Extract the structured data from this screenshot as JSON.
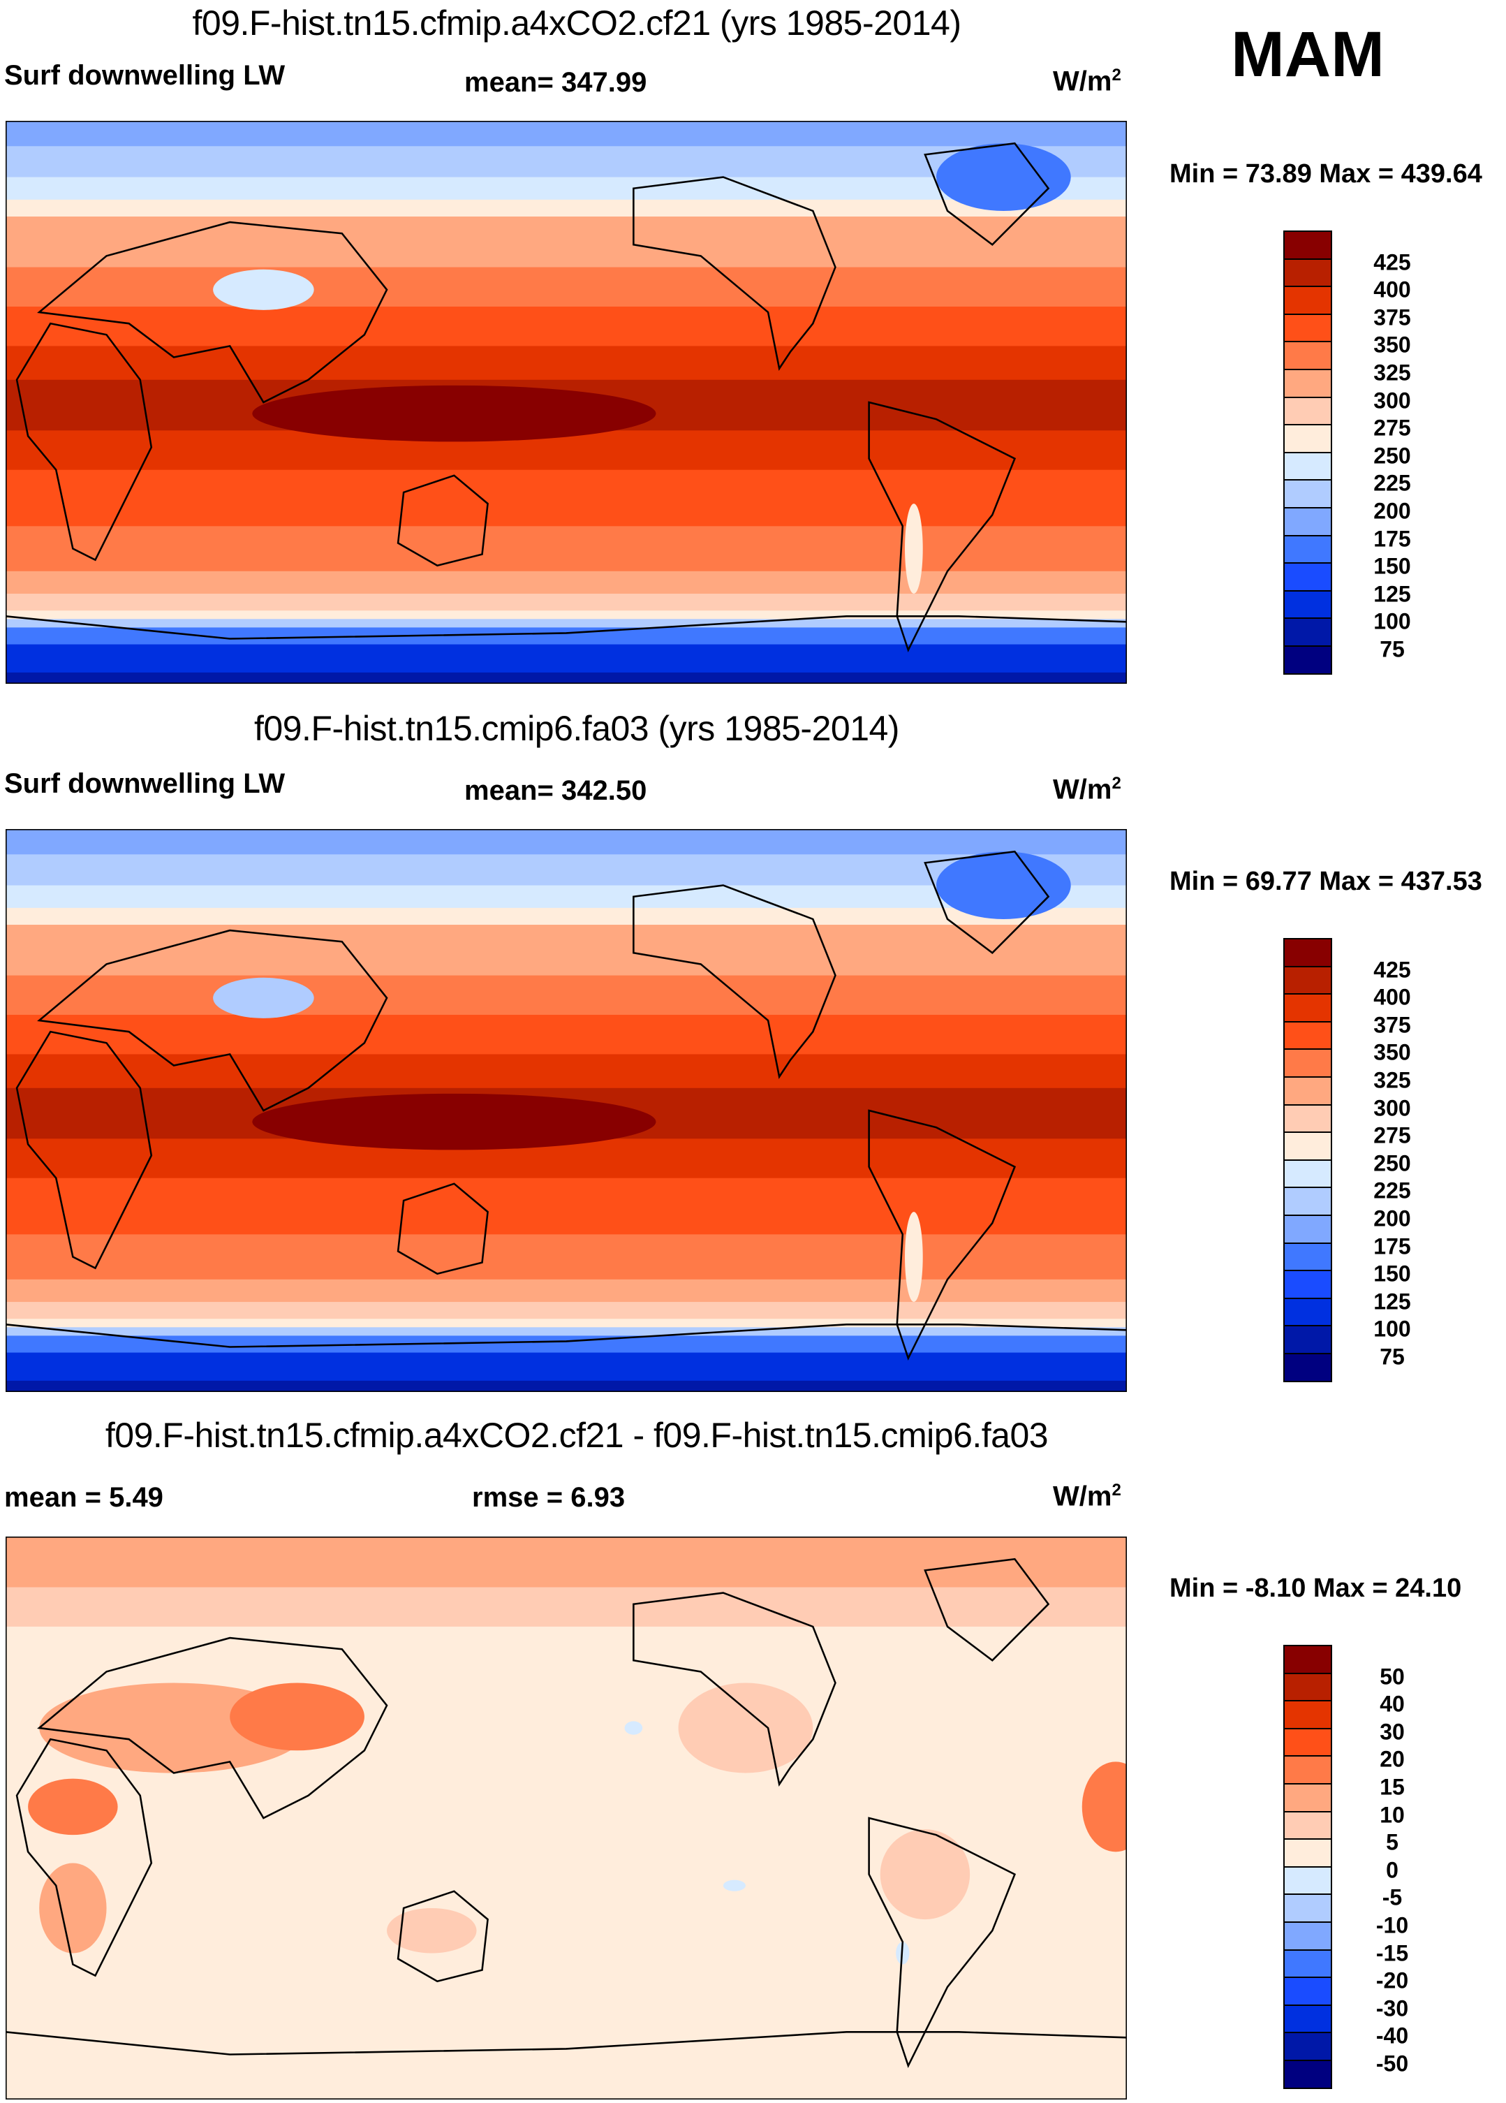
{
  "season": "MAM",
  "palette": [
    "#000080",
    "#0018a8",
    "#0030e0",
    "#1a4cff",
    "#4078ff",
    "#80a8ff",
    "#b0ccff",
    "#d6eaff",
    "#ffeddc",
    "#ffccb4",
    "#ffa880",
    "#ff7a48",
    "#ff5018",
    "#e43400",
    "#b82000",
    "#880000"
  ],
  "chart_data": [
    {
      "type": "heatmap",
      "title": "f09.F-hist.tn15.cfmip.a4xCO2.cf21 (yrs 1985-2014)",
      "variable": "Surf downwelling LW",
      "mean_label": "mean= 347.99",
      "units": "W/m",
      "units_sup": "2",
      "minmax_label": "Min =  73.89 Max = 439.64",
      "min": 73.89,
      "max": 439.64,
      "mean": 347.99,
      "levels": [
        "425",
        "400",
        "375",
        "350",
        "325",
        "300",
        "275",
        "250",
        "225",
        "200",
        "175",
        "150",
        "125",
        "100",
        "75"
      ]
    },
    {
      "type": "heatmap",
      "title": "f09.F-hist.tn15.cmip6.fa03 (yrs 1985-2014)",
      "variable": "Surf downwelling LW",
      "mean_label": "mean= 342.50",
      "units": "W/m",
      "units_sup": "2",
      "minmax_label": "Min =  69.77 Max = 437.53",
      "min": 69.77,
      "max": 437.53,
      "mean": 342.5,
      "levels": [
        "425",
        "400",
        "375",
        "350",
        "325",
        "300",
        "275",
        "250",
        "225",
        "200",
        "175",
        "150",
        "125",
        "100",
        "75"
      ]
    },
    {
      "type": "heatmap",
      "title": "f09.F-hist.tn15.cfmip.a4xCO2.cf21 - f09.F-hist.tn15.cmip6.fa03",
      "variable": "mean =   5.49",
      "mean_label": "rmse =   6.93",
      "units": "W/m",
      "units_sup": "2",
      "minmax_label": "Min =  -8.10 Max =  24.10",
      "min": -8.1,
      "max": 24.1,
      "mean": 5.49,
      "rmse": 6.93,
      "levels": [
        "50",
        "40",
        "30",
        "20",
        "15",
        "10",
        "5",
        "0",
        "-5",
        "-10",
        "-15",
        "-20",
        "-30",
        "-40",
        "-50"
      ]
    }
  ]
}
